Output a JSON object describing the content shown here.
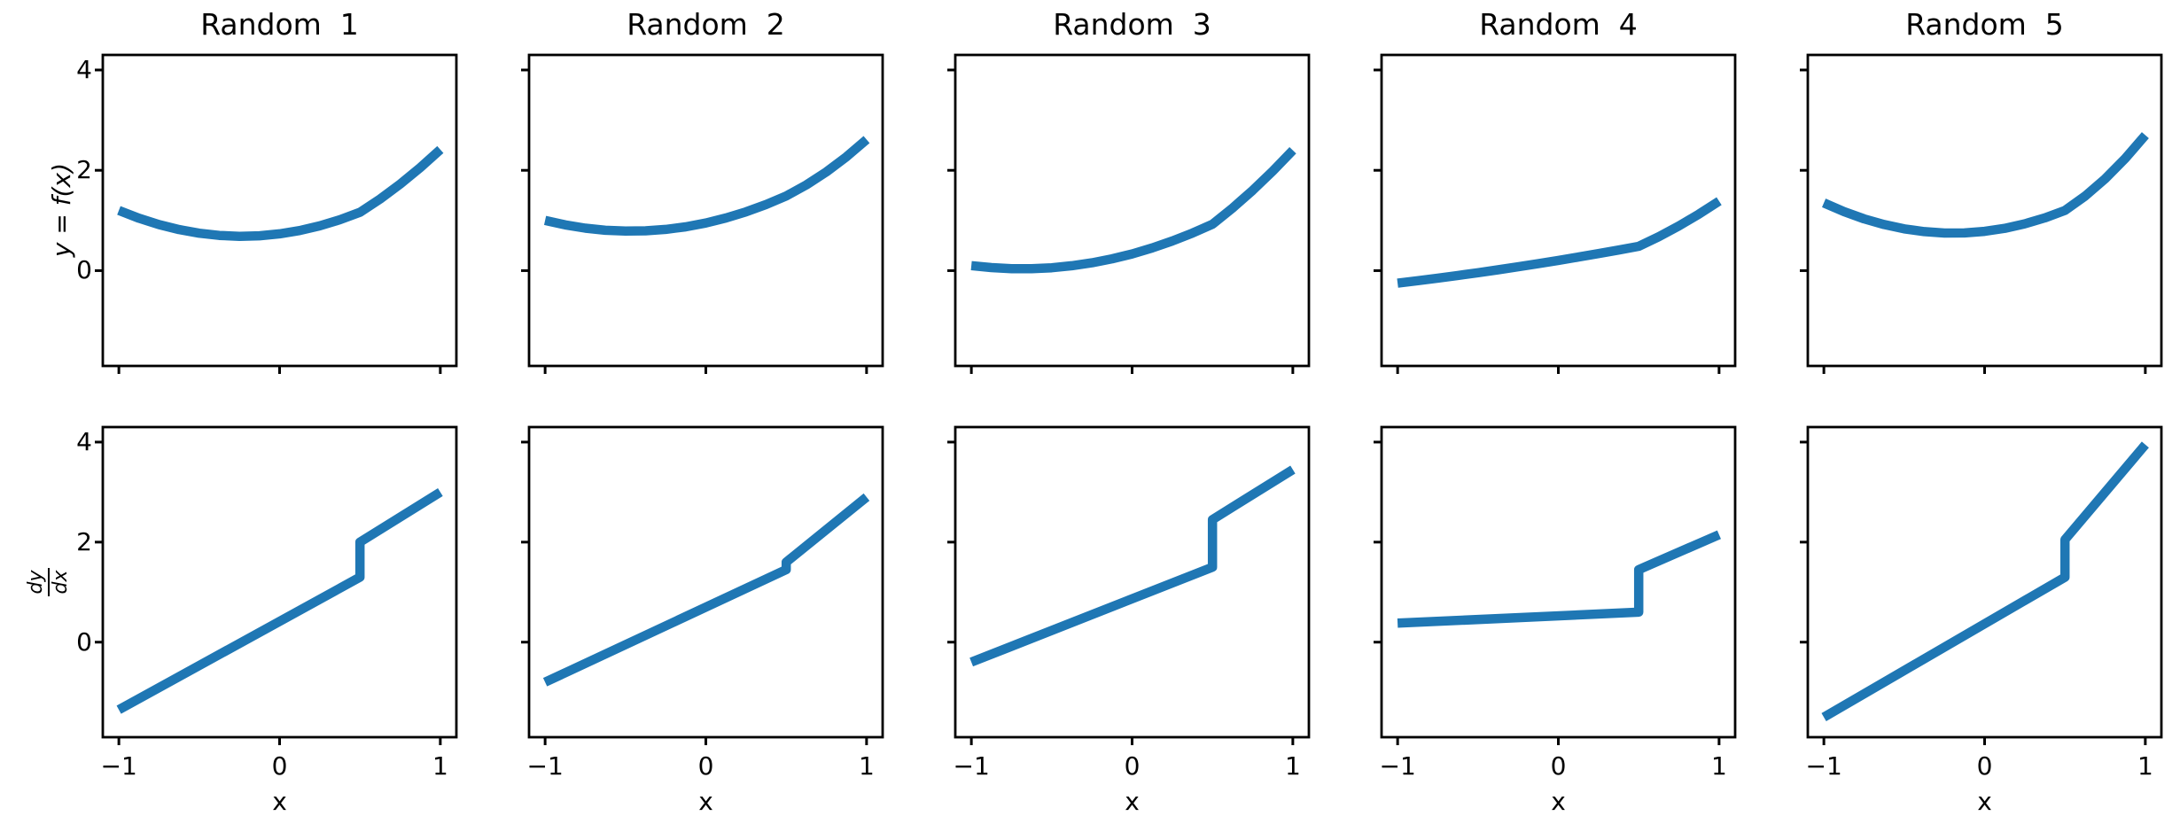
{
  "figure": {
    "background": "#ffffff",
    "line_color": "#1f77b4",
    "spine_color": "#000000"
  },
  "axes": {
    "xlabel": "x",
    "ylabel_top": "y = f(x)",
    "ylabel_bottom_numerator": "dy",
    "ylabel_bottom_denominator": "dx",
    "xtick_labels": [
      "−1",
      "0",
      "1"
    ],
    "ytick_labels": [
      "0",
      "2",
      "4"
    ]
  },
  "chart_data": {
    "type": "line",
    "layout": "2x5 grid; top row shows y=f(x), bottom row shows dy/dx; shared x and y axes; grid off; no legend",
    "xlim": [
      -1.1,
      1.1
    ],
    "ylim": [
      -1.9,
      4.3
    ],
    "xticks": [
      -1,
      0,
      1
    ],
    "yticks": [
      0,
      2,
      4
    ],
    "xlabel": "x",
    "ylabel_top_row": "y = f(x)",
    "ylabel_bottom_row": "dy/dx",
    "line_color": "#1f77b4",
    "panels": [
      {
        "title": "Random  1",
        "f": {
          "x": [
            -1,
            -0.875,
            -0.75,
            -0.625,
            -0.5,
            -0.375,
            -0.25,
            -0.125,
            0,
            0.125,
            0.25,
            0.375,
            0.5,
            0.625,
            0.75,
            0.875,
            1
          ],
          "y": [
            1.2,
            1.045,
            0.918,
            0.818,
            0.746,
            0.701,
            0.684,
            0.695,
            0.733,
            0.799,
            0.893,
            1.014,
            1.163,
            1.428,
            1.725,
            2.053,
            2.413
          ]
        },
        "dfdx": {
          "x": [
            -1,
            0.5,
            0.5,
            1
          ],
          "y": [
            -1.35,
            1.3,
            2.0,
            3.0
          ]
        }
      },
      {
        "title": "Random  2",
        "f": {
          "x": [
            -1,
            -0.875,
            -0.75,
            -0.625,
            -0.5,
            -0.375,
            -0.25,
            -0.125,
            0,
            0.125,
            0.25,
            0.375,
            0.5,
            0.625,
            0.75,
            0.875,
            1
          ],
          "y": [
            1.0,
            0.912,
            0.847,
            0.805,
            0.788,
            0.793,
            0.822,
            0.874,
            0.95,
            1.049,
            1.172,
            1.318,
            1.488,
            1.708,
            1.969,
            2.27,
            2.613
          ]
        },
        "dfdx": {
          "x": [
            -1,
            0.5,
            0.5,
            1
          ],
          "y": [
            -0.8,
            1.45,
            1.6,
            2.9
          ]
        }
      },
      {
        "title": "Random  3",
        "f": {
          "x": [
            -1,
            -0.875,
            -0.75,
            -0.625,
            -0.5,
            -0.375,
            -0.25,
            -0.125,
            0,
            0.125,
            0.25,
            0.375,
            0.5,
            0.625,
            0.75,
            0.875,
            1
          ],
          "y": [
            0.1,
            0.06,
            0.04,
            0.039,
            0.058,
            0.097,
            0.156,
            0.235,
            0.333,
            0.452,
            0.59,
            0.747,
            0.925,
            1.247,
            1.6,
            1.984,
            2.4
          ]
        },
        "dfdx": {
          "x": [
            -1,
            0.5,
            0.5,
            1
          ],
          "y": [
            -0.4,
            1.5,
            2.45,
            3.45
          ]
        }
      },
      {
        "title": "Random  4",
        "f": {
          "x": [
            -1,
            -0.875,
            -0.75,
            -0.625,
            -0.5,
            -0.375,
            -0.25,
            -0.125,
            0,
            0.125,
            0.25,
            0.375,
            0.5,
            0.625,
            0.75,
            0.875,
            1
          ],
          "y": [
            -0.25,
            -0.201,
            -0.15,
            -0.097,
            -0.042,
            0.016,
            0.076,
            0.139,
            0.203,
            0.27,
            0.34,
            0.411,
            0.485,
            0.677,
            0.891,
            1.127,
            1.385
          ]
        },
        "dfdx": {
          "x": [
            -1,
            0.5,
            0.5,
            1
          ],
          "y": [
            0.38,
            0.6,
            1.45,
            2.15
          ]
        }
      },
      {
        "title": "Random  5",
        "f": {
          "x": [
            -1,
            -0.875,
            -0.75,
            -0.625,
            -0.5,
            -0.375,
            -0.25,
            -0.125,
            0,
            0.125,
            0.25,
            0.375,
            0.5,
            0.625,
            0.75,
            0.875,
            1
          ],
          "y": [
            1.35,
            1.177,
            1.033,
            0.919,
            0.833,
            0.777,
            0.75,
            0.752,
            0.783,
            0.844,
            0.933,
            1.052,
            1.2,
            1.486,
            1.831,
            2.236,
            2.7
          ]
        },
        "dfdx": {
          "x": [
            -1,
            0.5,
            0.5,
            1
          ],
          "y": [
            -1.5,
            1.3,
            2.05,
            3.95
          ]
        }
      }
    ]
  }
}
